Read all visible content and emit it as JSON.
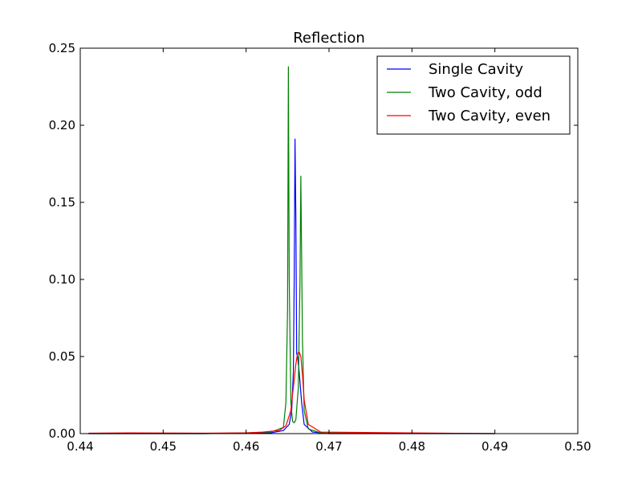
{
  "chart_data": {
    "type": "line",
    "title": "Reflection",
    "xlabel": "",
    "ylabel": "",
    "xlim": [
      0.44,
      0.5
    ],
    "ylim": [
      0.0,
      0.25
    ],
    "xticks": [
      0.44,
      0.45,
      0.46,
      0.47,
      0.48,
      0.49,
      0.5
    ],
    "xtick_labels": [
      "0.44",
      "0.45",
      "0.46",
      "0.47",
      "0.48",
      "0.49",
      "0.50"
    ],
    "yticks": [
      0.0,
      0.05,
      0.1,
      0.15,
      0.2,
      0.25
    ],
    "ytick_labels": [
      "0.00",
      "0.05",
      "0.10",
      "0.15",
      "0.20",
      "0.25"
    ],
    "grid": false,
    "legend_position": "top-right",
    "series": [
      {
        "name": "Single Cavity",
        "color": "#0000ff",
        "x": [
          0.441,
          0.455,
          0.463,
          0.4645,
          0.4652,
          0.4655,
          0.4657,
          0.4658,
          0.4659,
          0.466,
          0.4661,
          0.4662,
          0.4664,
          0.4667,
          0.467,
          0.468,
          0.47,
          0.49
        ],
        "y": [
          0.0,
          0.0,
          0.0005,
          0.002,
          0.006,
          0.015,
          0.04,
          0.1,
          0.191,
          0.14,
          0.052,
          0.05,
          0.04,
          0.02,
          0.006,
          0.001,
          0.0,
          0.0
        ]
      },
      {
        "name": "Two Cavity, odd",
        "color": "#008000",
        "x": [
          0.441,
          0.455,
          0.46,
          0.463,
          0.4645,
          0.4648,
          0.465,
          0.4651,
          0.4652,
          0.4654,
          0.4656,
          0.4658,
          0.466,
          0.4663,
          0.4665,
          0.4666,
          0.4668,
          0.467,
          0.4675,
          0.469,
          0.49
        ],
        "y": [
          0.0,
          0.0,
          0.0005,
          0.001,
          0.004,
          0.02,
          0.08,
          0.238,
          0.1,
          0.02,
          0.008,
          0.007,
          0.009,
          0.03,
          0.1,
          0.167,
          0.06,
          0.015,
          0.003,
          0.0005,
          0.0
        ]
      },
      {
        "name": "Two Cavity, even",
        "color": "#ff0000",
        "x": [
          0.441,
          0.446,
          0.455,
          0.46,
          0.462,
          0.463,
          0.464,
          0.4648,
          0.4654,
          0.4658,
          0.466,
          0.4662,
          0.4664,
          0.4666,
          0.4668,
          0.467,
          0.4675,
          0.469,
          0.49
        ],
        "y": [
          0.0003,
          0.0005,
          0.0003,
          0.0005,
          0.001,
          0.0015,
          0.002,
          0.005,
          0.015,
          0.035,
          0.045,
          0.052,
          0.053,
          0.05,
          0.038,
          0.022,
          0.006,
          0.001,
          0.0
        ]
      }
    ]
  }
}
